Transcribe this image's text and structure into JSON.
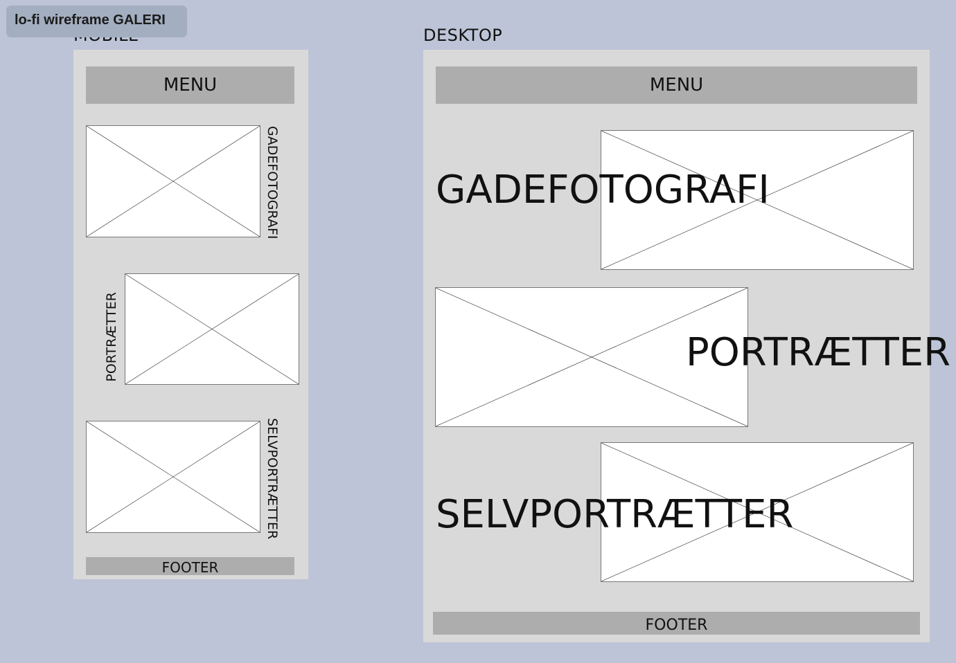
{
  "file_tag": "lo-fi wireframe GALERI",
  "mobile": {
    "label": "MOBILE",
    "menu": "MENU",
    "sections": [
      "GADEFOTOGRAFI",
      "PORTRÆTTER",
      "SELVPORTRÆTTER"
    ],
    "footer": "FOOTER"
  },
  "desktop": {
    "label": "DESKTOP",
    "menu": "MENU",
    "sections": [
      "GADEFOTOGRAFI",
      "PORTRÆTTER",
      "SELVPORTRÆTTER"
    ],
    "footer": "FOOTER"
  },
  "colors": {
    "background": "#bdc4d7",
    "panel": "#d9d9d9",
    "bar": "#adadad",
    "placeholder": "#ffffff"
  }
}
